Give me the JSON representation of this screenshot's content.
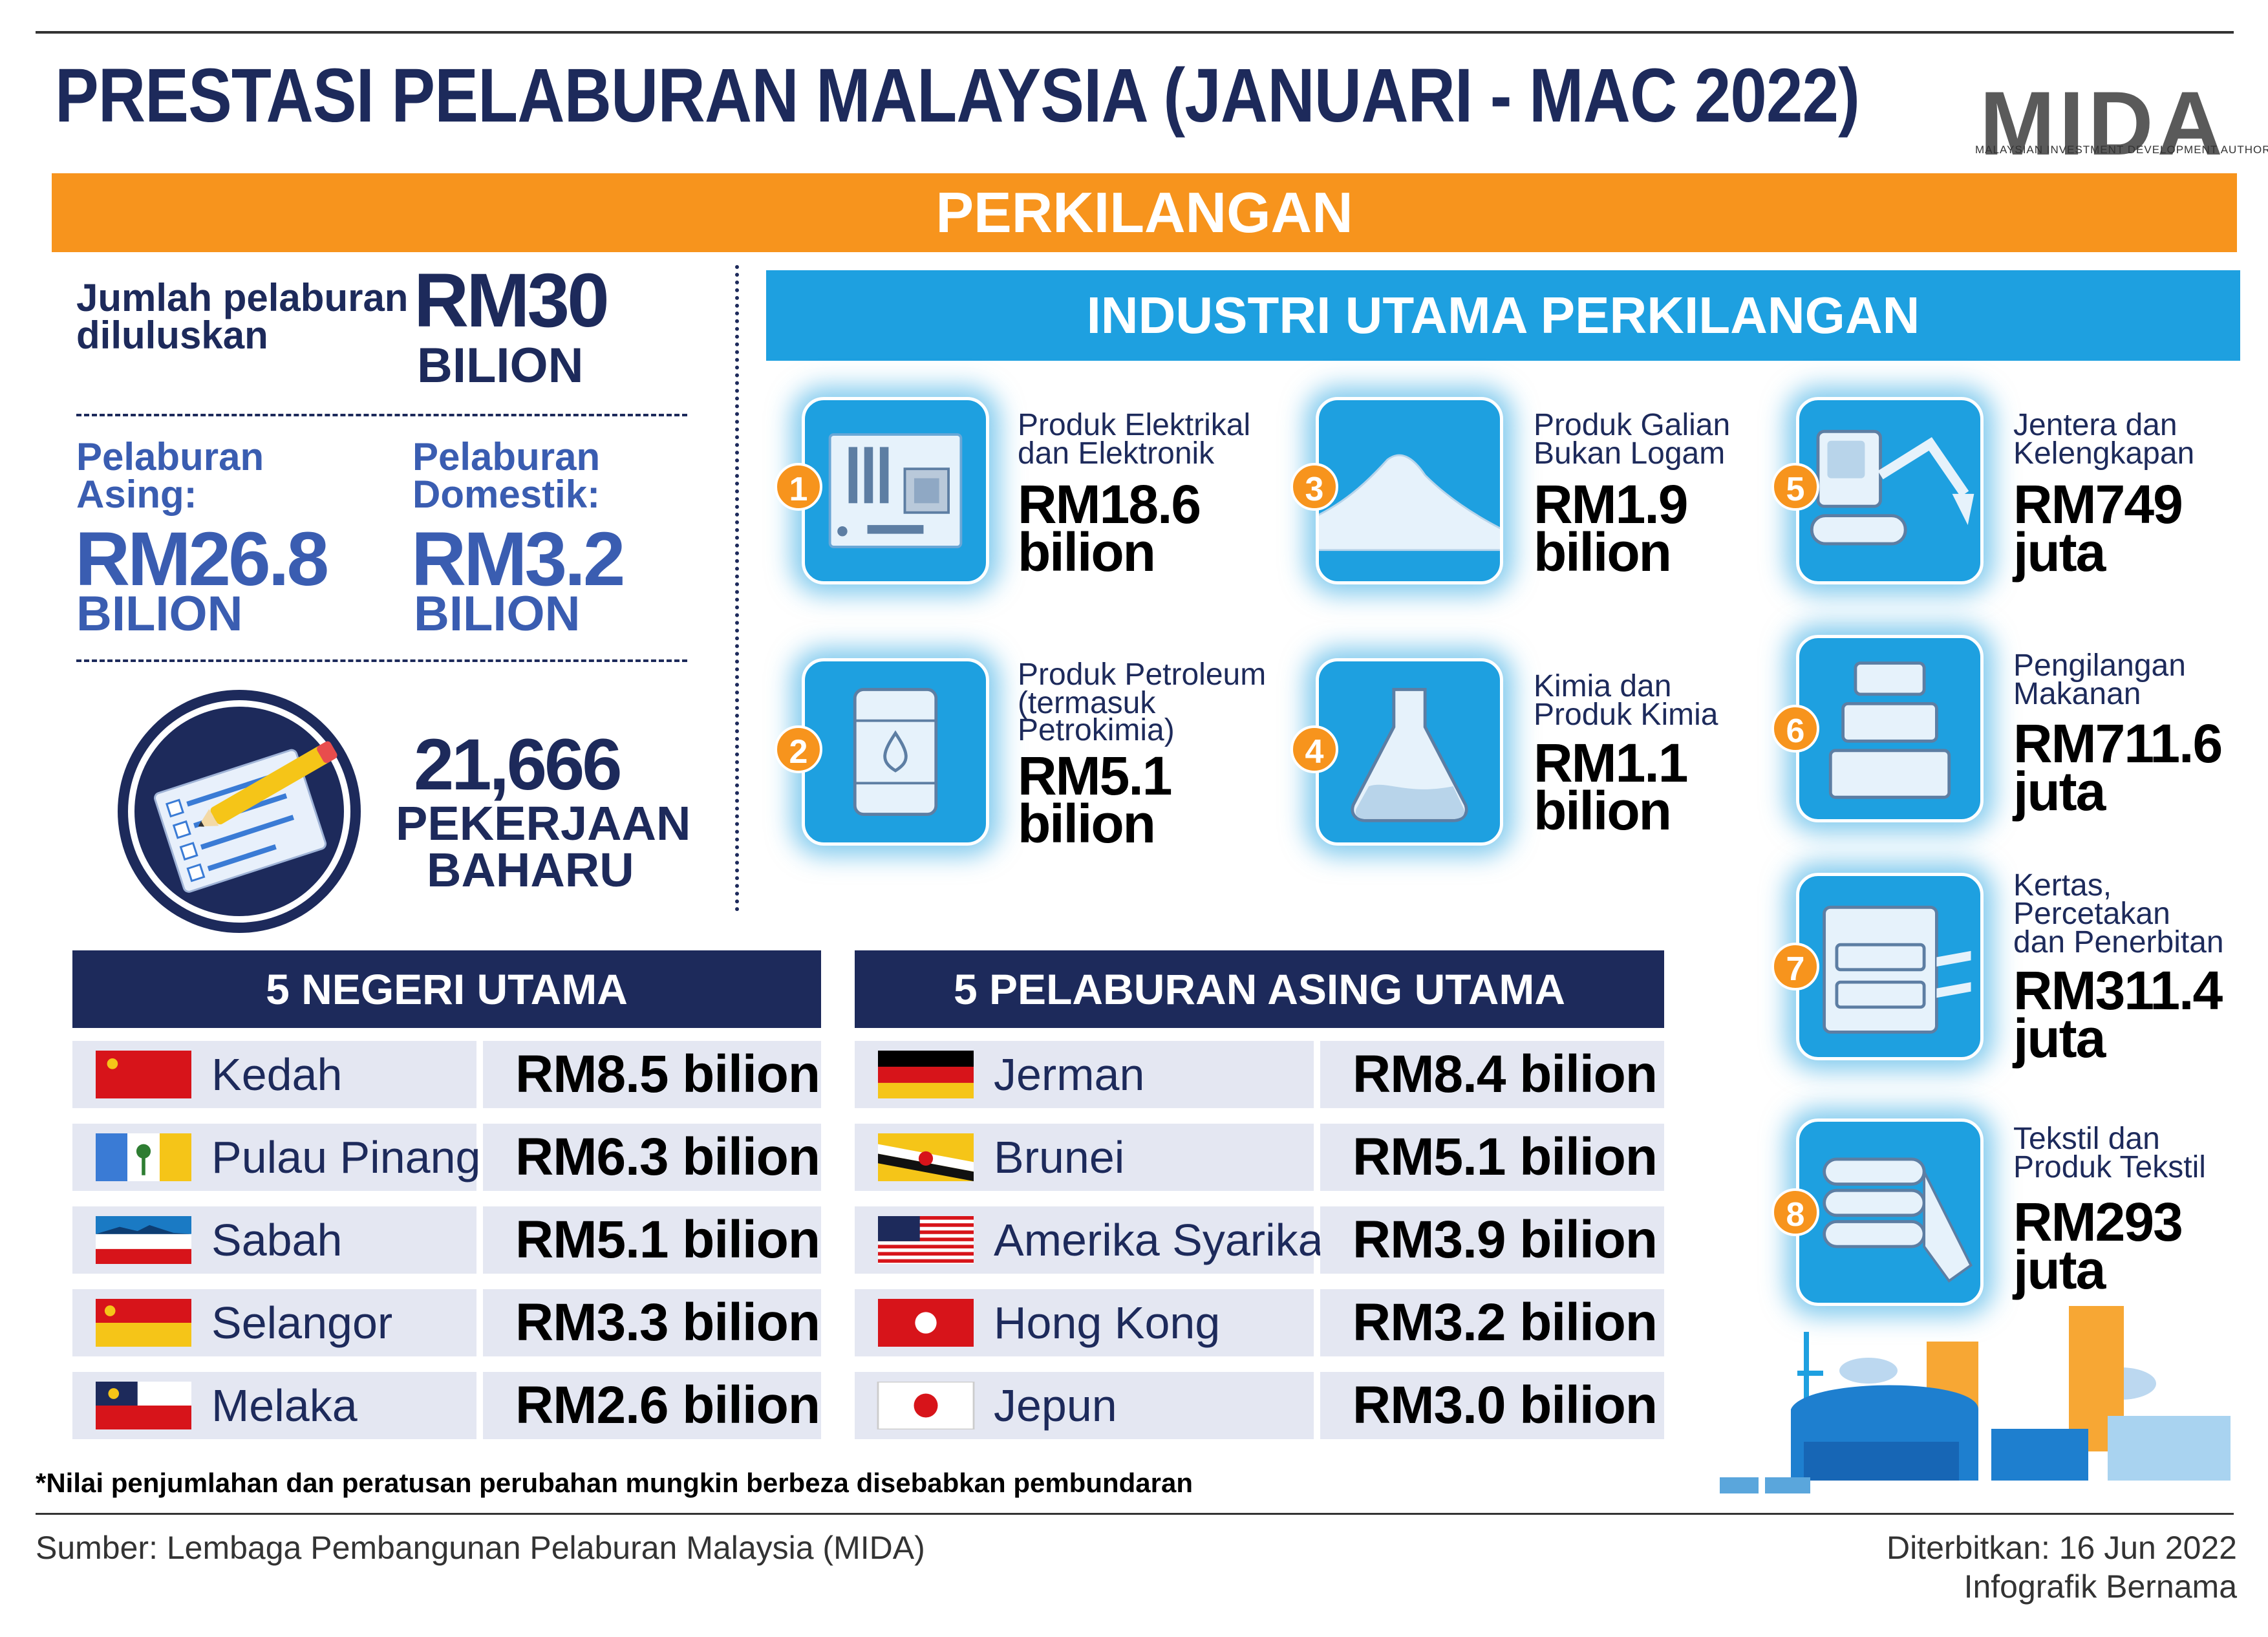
{
  "header": {
    "title": "PRESTASI PELABURAN MALAYSIA (JANUARI - MAC 2022)",
    "logo_text": "MIDA",
    "logo_subtitle": "MALAYSIAN INVESTMENT DEVELOPMENT AUTHORITY"
  },
  "banner": {
    "label": "PERKILANGAN"
  },
  "summary": {
    "total_label": "Jumlah pelaburan diluluskan",
    "total_value": "RM30",
    "total_unit": "BILION",
    "foreign_label": "Pelaburan Asing:",
    "foreign_value": "RM26.8",
    "foreign_unit": "BILION",
    "domestic_label": "Pelaburan Domestik:",
    "domestic_value": "RM3.2",
    "domestic_unit": "BILION",
    "jobs_value": "21,666",
    "jobs_label_1": "PEKERJAAN",
    "jobs_label_2": "BAHARU"
  },
  "industries": {
    "heading": "INDUSTRI UTAMA PERKILANGAN",
    "items": [
      {
        "rank": "1",
        "name_1": "Produk Elektrikal",
        "name_2": "dan Elektronik",
        "name_3": "",
        "value": "RM18.6",
        "unit": "bilion",
        "icon": "motherboard-icon"
      },
      {
        "rank": "2",
        "name_1": "Produk Petroleum",
        "name_2": "(termasuk",
        "name_3": "Petrokimia)",
        "value": "RM5.1",
        "unit": "bilion",
        "icon": "oil-barrel-icon"
      },
      {
        "rank": "3",
        "name_1": "Produk Galian",
        "name_2": "Bukan Logam",
        "name_3": "",
        "value": "RM1.9",
        "unit": "bilion",
        "icon": "mineral-pile-icon"
      },
      {
        "rank": "4",
        "name_1": "Kimia dan",
        "name_2": "Produk Kimia",
        "name_3": "",
        "value": "RM1.1",
        "unit": "bilion",
        "icon": "flask-icon"
      },
      {
        "rank": "5",
        "name_1": "Jentera dan",
        "name_2": "Kelengkapan",
        "name_3": "",
        "value": "RM749",
        "unit": "juta",
        "icon": "excavator-icon"
      },
      {
        "rank": "6",
        "name_1": "Pengilangan",
        "name_2": "Makanan",
        "name_3": "",
        "value": "RM711.6",
        "unit": "juta",
        "icon": "food-container-icon"
      },
      {
        "rank": "7",
        "name_1": "Kertas,",
        "name_2": "Percetakan",
        "name_3": "dan Penerbitan",
        "value": "RM311.4",
        "unit": "juta",
        "icon": "printer-icon"
      },
      {
        "rank": "8",
        "name_1": "Tekstil dan",
        "name_2": "Produk Tekstil",
        "name_3": "",
        "value": "RM293",
        "unit": "juta",
        "icon": "folded-textile-icon"
      }
    ]
  },
  "states": {
    "heading": "5 NEGERI UTAMA",
    "rows": [
      {
        "name": "Kedah",
        "value": "RM8.5 bilion"
      },
      {
        "name": "Pulau Pinang",
        "value": "RM6.3 bilion"
      },
      {
        "name": "Sabah",
        "value": "RM5.1  bilion"
      },
      {
        "name": "Selangor",
        "value": "RM3.3 bilion"
      },
      {
        "name": "Melaka",
        "value": "RM2.6 bilion"
      }
    ]
  },
  "foreign": {
    "heading": "5 PELABURAN ASING UTAMA",
    "rows": [
      {
        "name": "Jerman",
        "value": "RM8.4 bilion"
      },
      {
        "name": "Brunei",
        "value": "RM5.1  bilion"
      },
      {
        "name": "Amerika Syarikat",
        "value": "RM3.9 bilion"
      },
      {
        "name": "Hong Kong",
        "value": "RM3.2 bilion"
      },
      {
        "name": "Jepun",
        "value": "RM3.0 bilion"
      }
    ]
  },
  "footer": {
    "note": "*Nilai penjumlahan dan peratusan perubahan mungkin berbeza disebabkan pembundaran",
    "source": "Sumber: Lembaga Pembangunan Pelaburan Malaysia (MIDA)",
    "published": "Diterbitkan: 16 Jun 2022",
    "credit": "Infografik Bernama"
  },
  "colors": {
    "navy": "#1d2a5b",
    "orange": "#f7941d",
    "sky_blue": "#1ea0e0",
    "row_bg": "#e4e7f2",
    "accent_blue": "#3a5db1"
  }
}
